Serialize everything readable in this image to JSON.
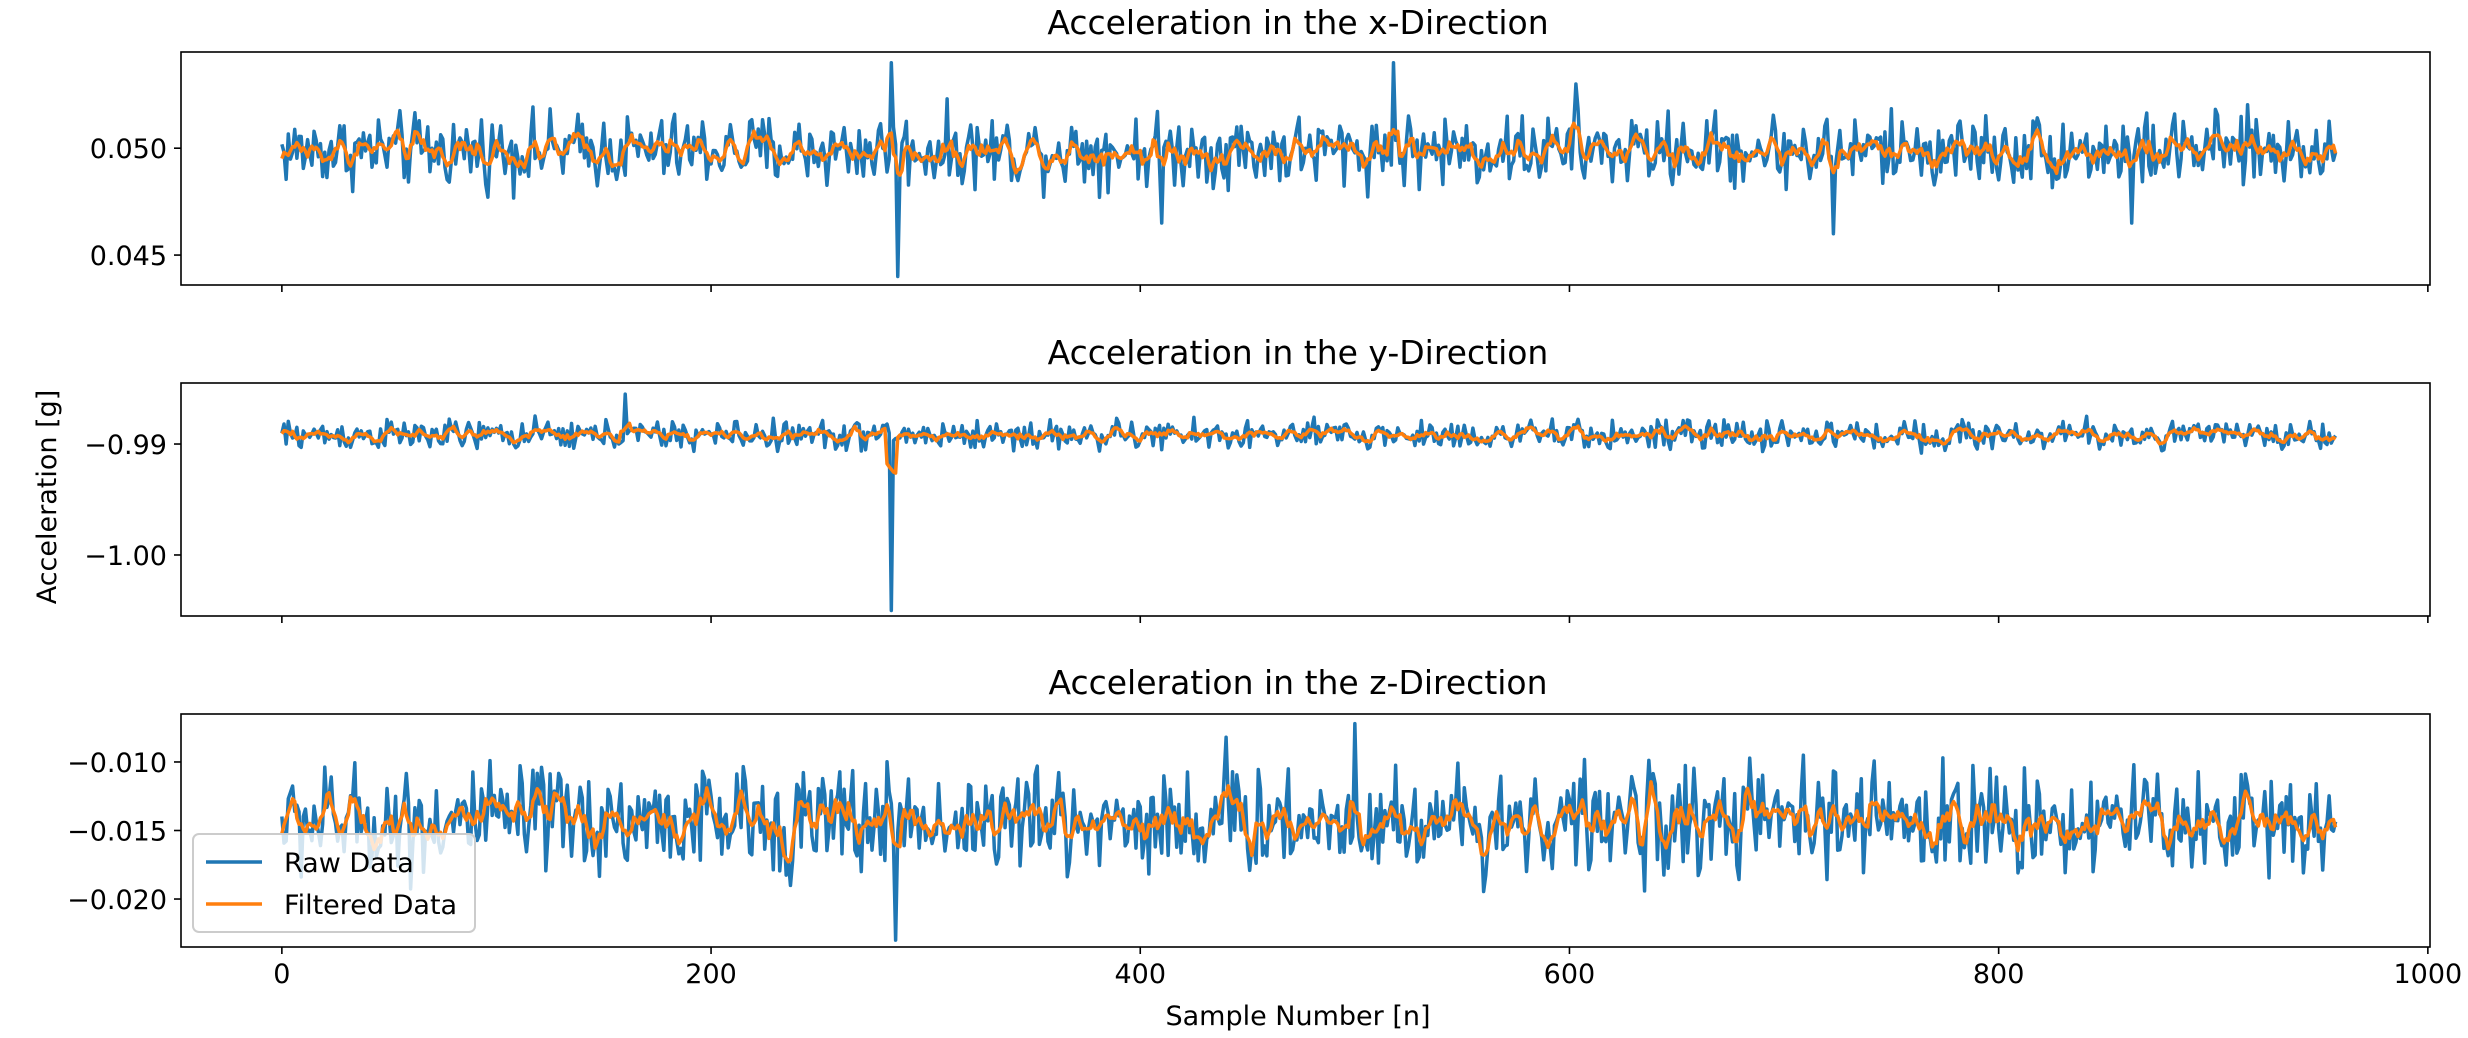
{
  "figure": {
    "xlabel": "Sample Number [n]",
    "ylabel": "Acceleration [g]"
  },
  "colors": {
    "raw": "#1f77b4",
    "filtered": "#ff7f0e"
  },
  "chart_data": [
    {
      "type": "line",
      "title": "Acceleration in the x-Direction",
      "xlim": [
        -47,
        1001
      ],
      "ylim": [
        0.0436,
        0.0545
      ],
      "xticks": [
        0,
        200,
        400,
        600,
        800,
        1000
      ],
      "xtick_labels": [
        "0",
        "200",
        "400",
        "600",
        "800",
        "1000"
      ],
      "yticks": [
        0.045,
        0.05
      ],
      "ytick_labels": [
        "0.045",
        "0.050"
      ],
      "n": 958,
      "spikes": [
        {
          "x": 284,
          "y": 0.054
        },
        {
          "x": 287,
          "y": 0.044
        },
        {
          "x": 518,
          "y": 0.054
        },
        {
          "x": 410,
          "y": 0.0465
        },
        {
          "x": 603,
          "y": 0.053
        },
        {
          "x": 723,
          "y": 0.046
        },
        {
          "x": 862,
          "y": 0.0465
        }
      ],
      "series": [
        {
          "name": "Raw Data",
          "color": "#1f77b4",
          "center": 0.0499,
          "amplitude": 0.0015
        },
        {
          "name": "Filtered Data",
          "color": "#ff7f0e",
          "center": 0.0499,
          "amplitude": 0.0008
        }
      ]
    },
    {
      "type": "line",
      "title": "Acceleration in the y-Direction",
      "xlim": [
        -47,
        1001
      ],
      "ylim": [
        -1.0055,
        -0.9845
      ],
      "xticks": [
        0,
        200,
        400,
        600,
        800,
        1000
      ],
      "xtick_labels": [
        "0",
        "200",
        "400",
        "600",
        "800",
        "1000"
      ],
      "yticks": [
        -1.0,
        -0.99
      ],
      "ytick_labels": [
        "−1.00",
        "−0.99"
      ],
      "n": 958,
      "spikes": [
        {
          "x": 284,
          "y": -1.005
        },
        {
          "x": 160,
          "y": -0.9855
        }
      ],
      "series": [
        {
          "name": "Raw Data",
          "color": "#1f77b4",
          "center": -0.9892,
          "amplitude": 0.0012
        },
        {
          "name": "Filtered Data",
          "color": "#ff7f0e",
          "center": -0.9892,
          "amplitude": 0.0006
        }
      ]
    },
    {
      "type": "line",
      "title": "Acceleration in the z-Direction",
      "xlim": [
        -47,
        1001
      ],
      "ylim": [
        -0.0235,
        -0.0065
      ],
      "xticks": [
        0,
        200,
        400,
        600,
        800,
        1000
      ],
      "xtick_labels": [
        "0",
        "200",
        "400",
        "600",
        "800",
        "1000"
      ],
      "yticks": [
        -0.02,
        -0.015,
        -0.01
      ],
      "ytick_labels": [
        "−0.020",
        "−0.015",
        "−0.010"
      ],
      "n": 958,
      "spikes": [
        {
          "x": 286,
          "y": -0.023
        },
        {
          "x": 500,
          "y": -0.0072
        },
        {
          "x": 440,
          "y": -0.0082
        }
      ],
      "series": [
        {
          "name": "Raw Data",
          "color": "#1f77b4",
          "center": -0.0143,
          "amplitude": 0.0035
        },
        {
          "name": "Filtered Data",
          "color": "#ff7f0e",
          "center": -0.0143,
          "amplitude": 0.0018
        }
      ]
    }
  ],
  "legend": {
    "placement": "lower-left of third panel",
    "entries": [
      {
        "label": "Raw Data",
        "color": "#1f77b4"
      },
      {
        "label": "Filtered Data",
        "color": "#ff7f0e"
      }
    ]
  }
}
